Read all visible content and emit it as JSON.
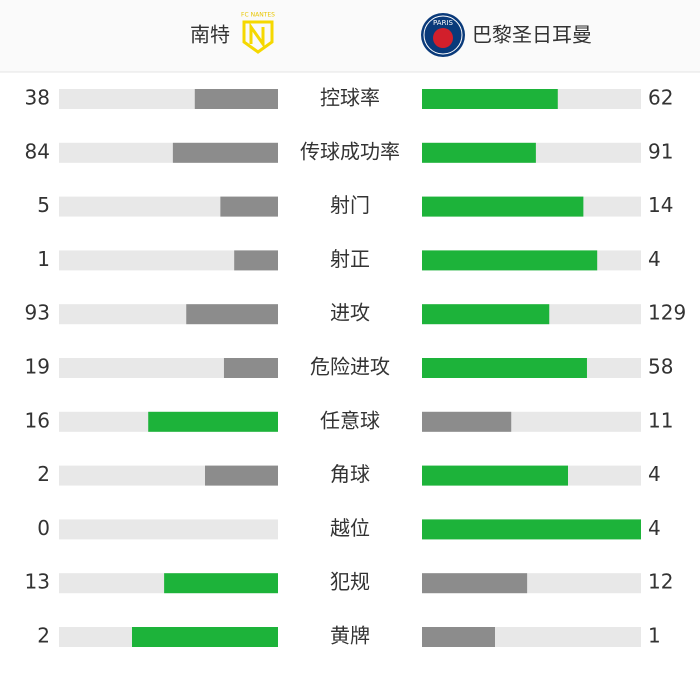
{
  "header": {
    "home": {
      "name": "南特",
      "logo_text": "FC NANTES"
    },
    "away": {
      "name": "巴黎圣日耳曼",
      "logo_text": "PARIS"
    }
  },
  "rows": [
    {
      "label": "控球率",
      "home": 38,
      "away": 62
    },
    {
      "label": "传球成功率",
      "home": 84,
      "away": 91
    },
    {
      "label": "射门",
      "home": 5,
      "away": 14
    },
    {
      "label": "射正",
      "home": 1,
      "away": 4
    },
    {
      "label": "进攻",
      "home": 93,
      "away": 129
    },
    {
      "label": "危险进攻",
      "home": 19,
      "away": 58
    },
    {
      "label": "任意球",
      "home": 16,
      "away": 11
    },
    {
      "label": "角球",
      "home": 2,
      "away": 4
    },
    {
      "label": "越位",
      "home": 0,
      "away": 4
    },
    {
      "label": "犯规",
      "home": 13,
      "away": 12
    },
    {
      "label": "黄牌",
      "home": 2,
      "away": 1
    }
  ]
}
